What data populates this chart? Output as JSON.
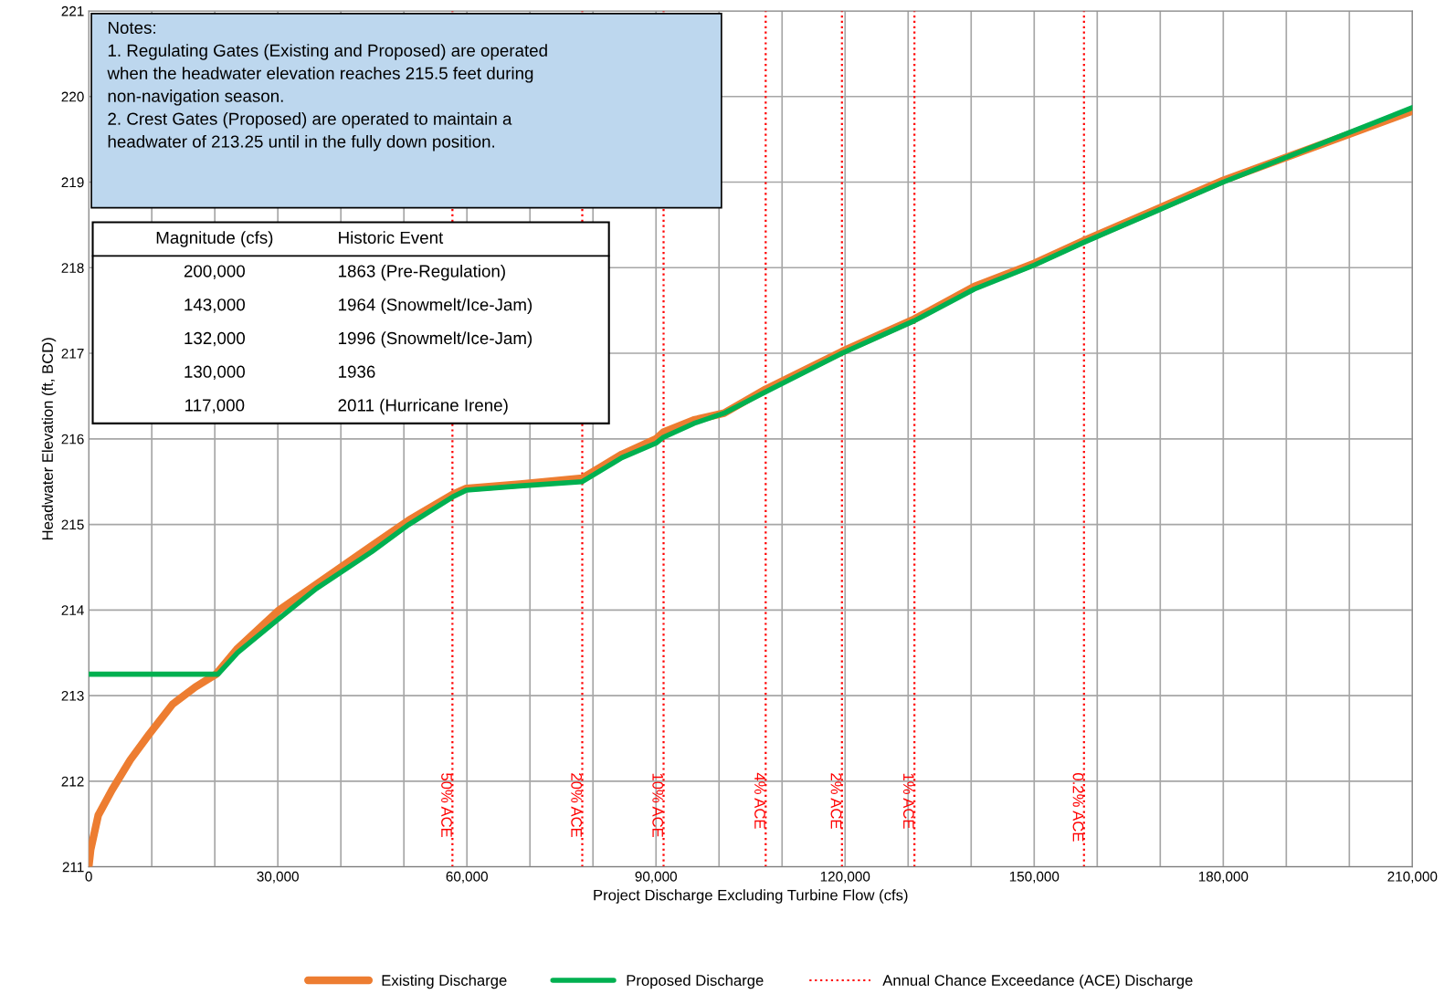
{
  "chart_data": {
    "type": "line",
    "xlabel": "Project Discharge Excluding Turbine Flow (cfs)",
    "ylabel": "Headwater Elevation (ft, BCD)",
    "xlim": [
      0,
      210000
    ],
    "ylim": [
      211,
      221
    ],
    "xticks": [
      {
        "value": 0,
        "label": "0"
      },
      {
        "value": 10000,
        "label": null
      },
      {
        "value": 20000,
        "label": null
      },
      {
        "value": 30000,
        "label": "30,000"
      },
      {
        "value": 40000,
        "label": null
      },
      {
        "value": 50000,
        "label": null
      },
      {
        "value": 60000,
        "label": "60,000"
      },
      {
        "value": 70000,
        "label": null
      },
      {
        "value": 80000,
        "label": null
      },
      {
        "value": 90000,
        "label": "90,000"
      },
      {
        "value": 100000,
        "label": null
      },
      {
        "value": 110000,
        "label": null
      },
      {
        "value": 120000,
        "label": "120,000"
      },
      {
        "value": 130000,
        "label": null
      },
      {
        "value": 140000,
        "label": null
      },
      {
        "value": 150000,
        "label": "150,000"
      },
      {
        "value": 160000,
        "label": null
      },
      {
        "value": 170000,
        "label": null
      },
      {
        "value": 180000,
        "label": "180,000"
      },
      {
        "value": 190000,
        "label": null
      },
      {
        "value": 200000,
        "label": null
      },
      {
        "value": 210000,
        "label": "210,000"
      }
    ],
    "yticks": [
      211,
      212,
      213,
      214,
      215,
      216,
      217,
      218,
      219,
      220,
      221
    ],
    "grid": true,
    "legend": "bottom",
    "marker": "none",
    "line_style": "solid",
    "series": [
      {
        "name": "Existing Discharge",
        "color": "#ed7d31",
        "x": [
          0,
          300,
          1500,
          3700,
          6600,
          9600,
          13300,
          16900,
          20200,
          23600,
          30200,
          36100,
          44900,
          50800,
          57700,
          59900,
          68400,
          78300,
          84600,
          90000,
          91200,
          96000,
          100800,
          107400,
          119500,
          131000,
          140500,
          150000,
          158000,
          180000,
          210000
        ],
        "values": [
          211.0,
          211.2,
          211.6,
          211.9,
          212.25,
          212.55,
          212.9,
          213.1,
          213.25,
          213.55,
          214.0,
          214.3,
          214.75,
          215.05,
          215.35,
          215.42,
          215.47,
          215.54,
          215.82,
          216.0,
          216.08,
          216.22,
          216.3,
          216.58,
          217.02,
          217.4,
          217.78,
          218.05,
          218.32,
          219.02,
          219.83
        ]
      },
      {
        "name": "Proposed Discharge",
        "color": "#00b050",
        "x": [
          0,
          20500,
          23600,
          30200,
          36100,
          44900,
          50800,
          57700,
          59900,
          68400,
          78300,
          84600,
          90000,
          91200,
          96000,
          100800,
          107400,
          119500,
          131000,
          140500,
          150000,
          158000,
          180000,
          210000
        ],
        "values": [
          213.25,
          213.25,
          213.5,
          213.9,
          214.25,
          214.68,
          215.0,
          215.32,
          215.4,
          215.45,
          215.5,
          215.78,
          215.95,
          216.02,
          216.18,
          216.3,
          216.55,
          217.0,
          217.38,
          217.75,
          218.03,
          218.3,
          219.0,
          219.87
        ]
      }
    ],
    "ref_lines": [
      {
        "axis": "x",
        "value": 57700,
        "label": "50% ACE",
        "color": "#ff0000",
        "line_style": "dotted"
      },
      {
        "axis": "x",
        "value": 78300,
        "label": "20% ACE",
        "color": "#ff0000",
        "line_style": "dotted"
      },
      {
        "axis": "x",
        "value": 91200,
        "label": "10% ACE",
        "color": "#ff0000",
        "line_style": "dotted"
      },
      {
        "axis": "x",
        "value": 107400,
        "label": "4% ACE",
        "color": "#ff0000",
        "line_style": "dotted"
      },
      {
        "axis": "x",
        "value": 119500,
        "label": "2% ACE",
        "color": "#ff0000",
        "line_style": "dotted"
      },
      {
        "axis": "x",
        "value": 131000,
        "label": "1% ACE",
        "color": "#ff0000",
        "line_style": "dotted"
      },
      {
        "axis": "x",
        "value": 157900,
        "label": "0.2% ACE",
        "color": "#ff0000",
        "line_style": "dotted"
      }
    ],
    "annotations": [
      "Notes:\n1. Regulating Gates (Existing and Proposed) are operated\nwhen the headwater elevation reaches 215.5 feet during\nnon-navigation season.\n2. Crest Gates (Proposed) are operated to maintain a\nheadwater of 213.25 until in the fully down position.",
      "Magnitude (cfs)",
      "Historic Event",
      "200,000",
      "1863 (Pre-Regulation)",
      "143,000",
      "1964 (Snowmelt/Ice-Jam)",
      "132,000",
      "1996 (Snowmelt/Ice-Jam)",
      "130,000",
      "1936",
      "117,000",
      "2011 (Hurricane Irene)",
      "Annual Chance Exceedance (ACE) Discharge"
    ]
  }
}
